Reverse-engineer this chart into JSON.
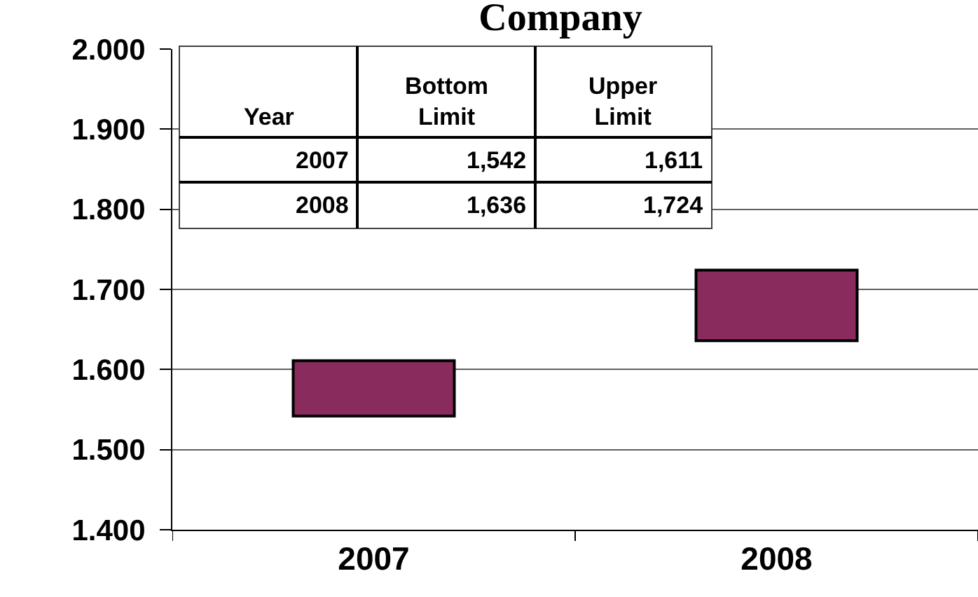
{
  "chart_data": {
    "type": "bar",
    "title": "Company",
    "categories": [
      "2007",
      "2008"
    ],
    "base": [
      1.542,
      1.636
    ],
    "values": [
      0.069,
      0.088
    ],
    "color": "#8a2b5e",
    "ylim": [
      1.4,
      2.0
    ],
    "yticks": [
      {
        "value": 1.4,
        "label": "1.400"
      },
      {
        "value": 1.5,
        "label": "1.500"
      },
      {
        "value": 1.6,
        "label": "1.600"
      },
      {
        "value": 1.7,
        "label": "1.700"
      },
      {
        "value": 1.8,
        "label": "1.800"
      },
      {
        "value": 1.9,
        "label": "1.900"
      },
      {
        "value": 2.0,
        "label": "2.000"
      }
    ],
    "grid": "y",
    "annotations": [
      "Year",
      "Bottom Limit",
      "Upper Limit",
      "2007",
      "1,542",
      "1,611",
      "2008",
      "1,636",
      "1,724"
    ]
  }
}
